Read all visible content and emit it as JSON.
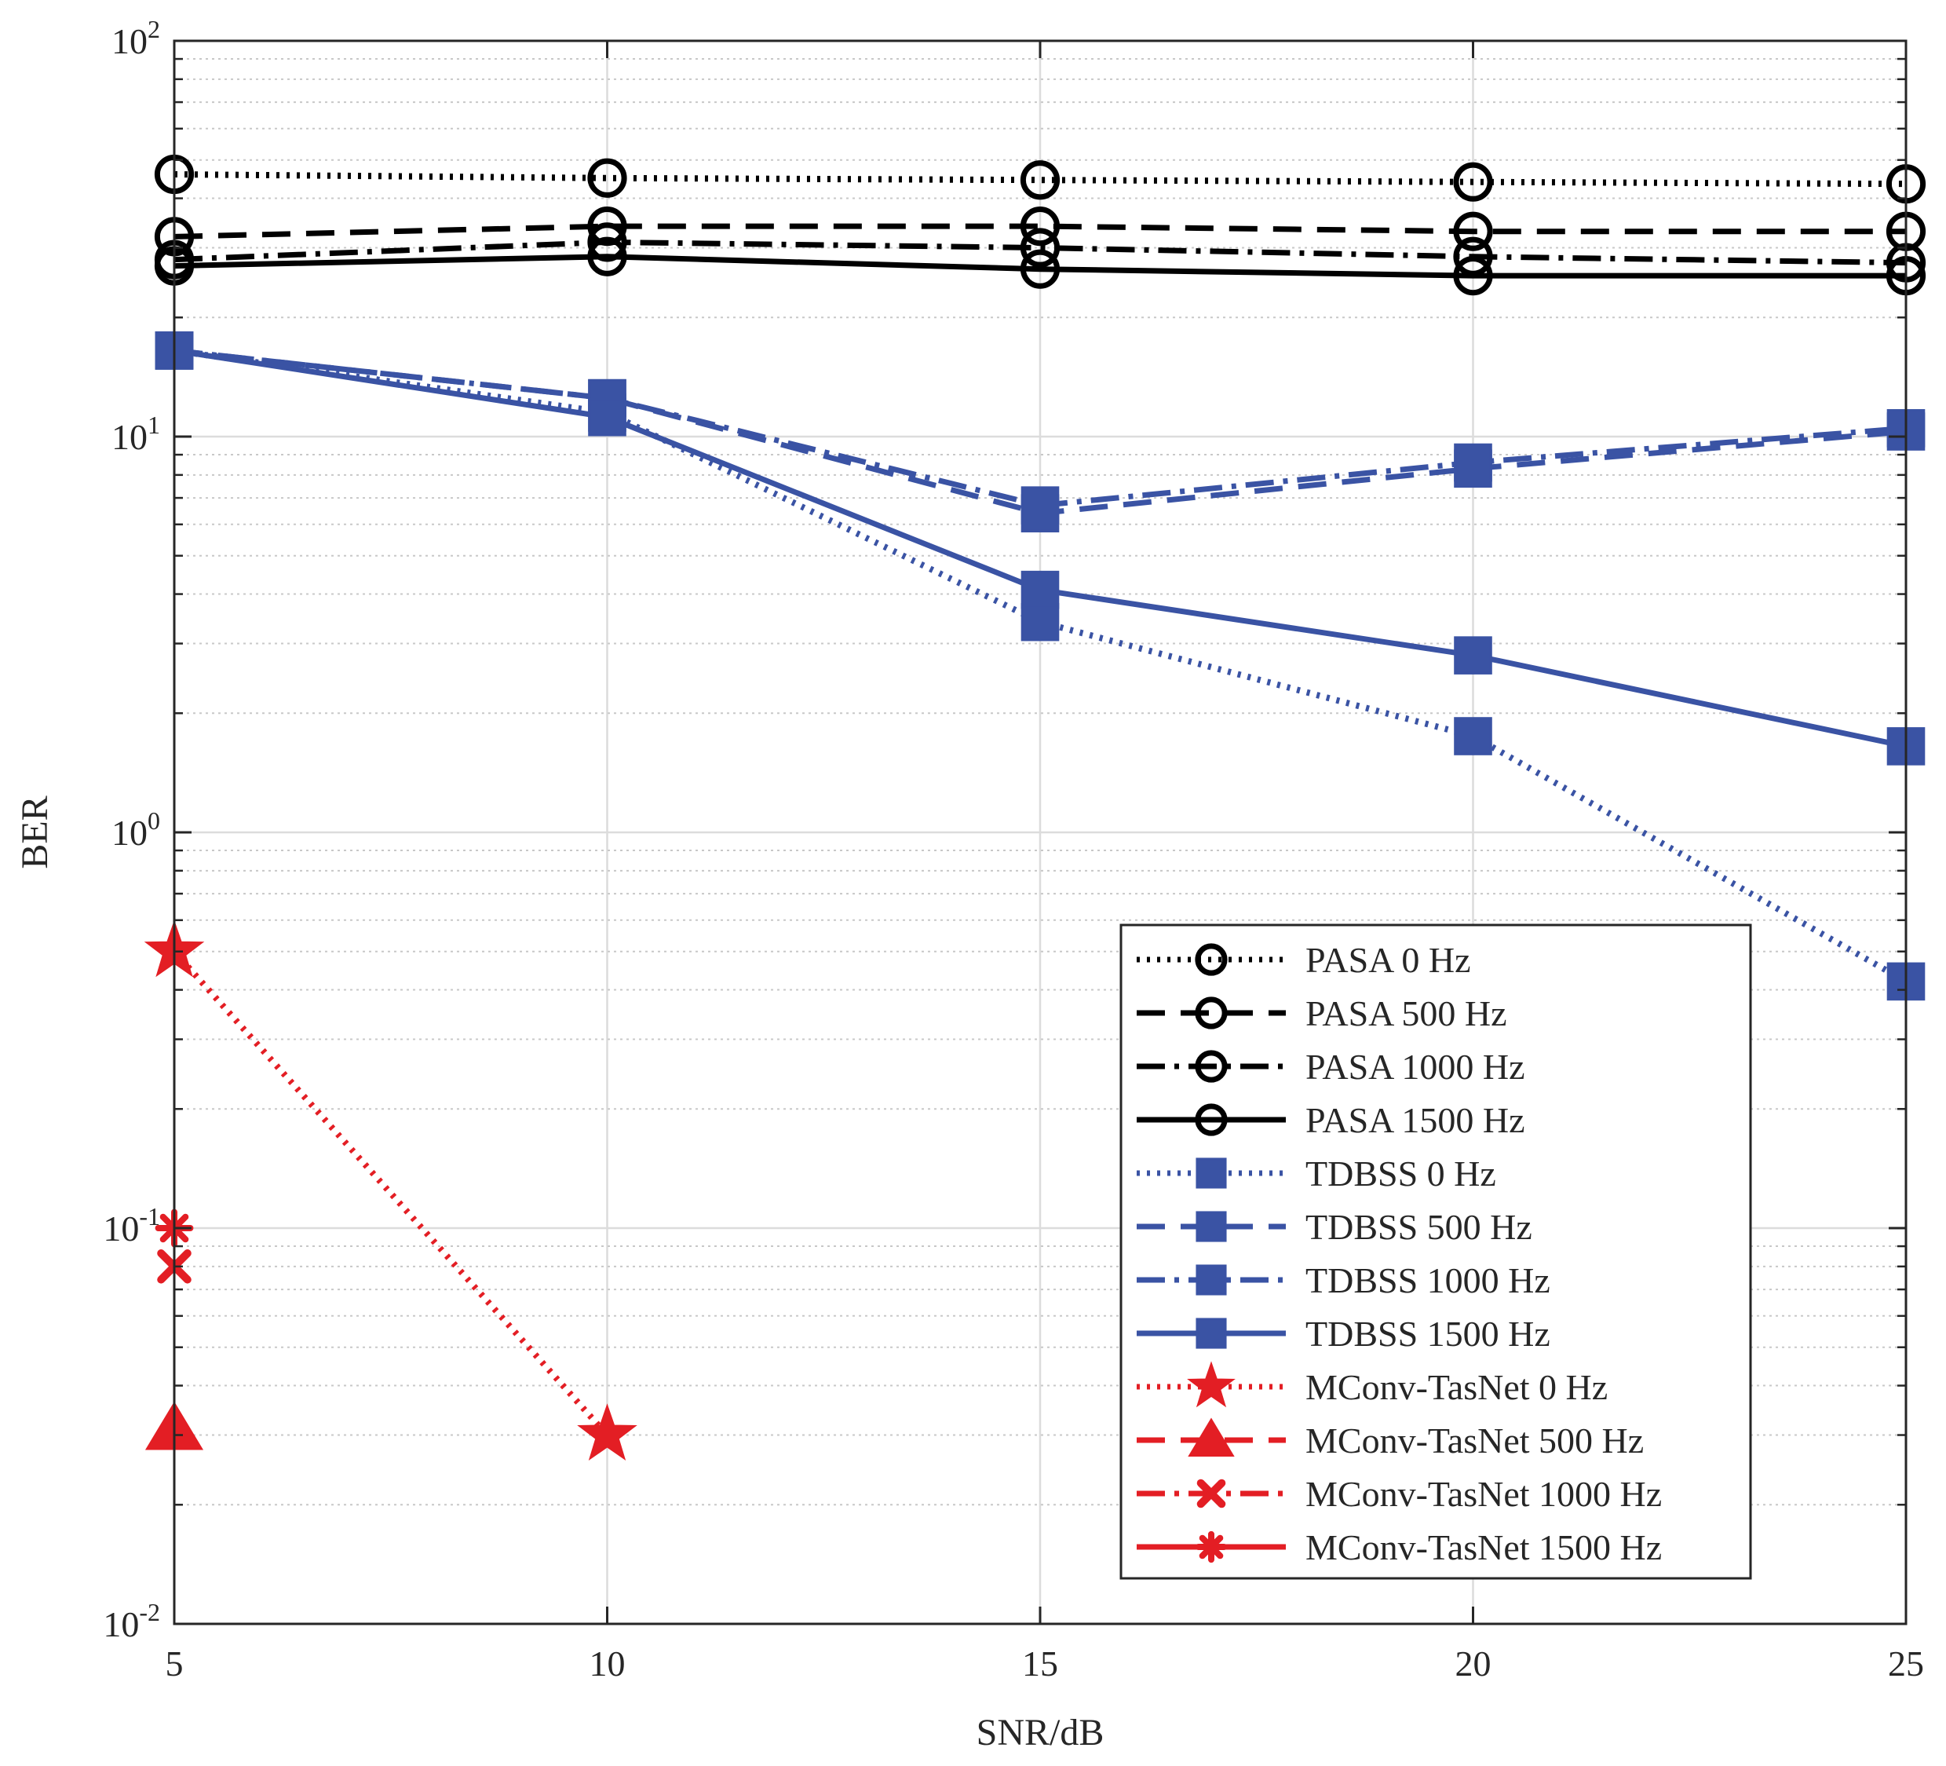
{
  "chart_data": {
    "type": "line",
    "xlabel": "SNR/dB",
    "ylabel": "BER",
    "yscale": "log",
    "xlim": [
      5,
      25
    ],
    "ylim": [
      0.01,
      100
    ],
    "grid": true,
    "legend_position": "bottom-right",
    "x": [
      5,
      10,
      15,
      20,
      25
    ],
    "x_tick_labels": [
      "5",
      "10",
      "15",
      "20",
      "25"
    ],
    "y_ticks": [
      {
        "value": 100,
        "base": "10",
        "exp": "2"
      },
      {
        "value": 10,
        "base": "10",
        "exp": "1"
      },
      {
        "value": 1,
        "base": "10",
        "exp": "0"
      },
      {
        "value": 0.1,
        "base": "10",
        "exp": "-1"
      },
      {
        "value": 0.01,
        "base": "10",
        "exp": "-2"
      }
    ],
    "series": [
      {
        "name": "PASA 0 Hz",
        "color": "#000000",
        "dash": "dotted",
        "marker": "circle",
        "x": [
          5,
          10,
          15,
          20,
          25
        ],
        "values": [
          46,
          45,
          44.5,
          44,
          43.5
        ]
      },
      {
        "name": "PASA 500 Hz",
        "color": "#000000",
        "dash": "dashed",
        "marker": "circle",
        "x": [
          5,
          10,
          15,
          20,
          25
        ],
        "values": [
          32,
          34,
          34,
          33,
          33
        ]
      },
      {
        "name": "PASA 1000 Hz",
        "color": "#000000",
        "dash": "dashdot",
        "marker": "circle",
        "x": [
          5,
          10,
          15,
          20,
          25
        ],
        "values": [
          28,
          31,
          30,
          28.5,
          27.5
        ]
      },
      {
        "name": "PASA 1500 Hz",
        "color": "#000000",
        "dash": "solid",
        "marker": "circle",
        "x": [
          5,
          10,
          15,
          20,
          25
        ],
        "values": [
          27,
          28.5,
          26.5,
          25.5,
          25.5
        ]
      },
      {
        "name": "TDBSS 0 Hz",
        "color": "#3A53A4",
        "dash": "dotted",
        "marker": "square",
        "x": [
          5,
          10,
          15,
          20,
          25
        ],
        "values": [
          16.5,
          11.5,
          3.4,
          1.75,
          0.42
        ]
      },
      {
        "name": "TDBSS 500 Hz",
        "color": "#3A53A4",
        "dash": "dashed",
        "marker": "square",
        "x": [
          5,
          10,
          15,
          20,
          25
        ],
        "values": [
          16.5,
          12.5,
          6.4,
          8.3,
          10.3
        ]
      },
      {
        "name": "TDBSS 1000 Hz",
        "color": "#3A53A4",
        "dash": "dashdot",
        "marker": "square",
        "x": [
          5,
          10,
          15,
          20,
          25
        ],
        "values": [
          16.5,
          12.5,
          6.7,
          8.6,
          10.5
        ]
      },
      {
        "name": "TDBSS 1500 Hz",
        "color": "#3A53A4",
        "dash": "solid",
        "marker": "square",
        "x": [
          5,
          10,
          15,
          20,
          25
        ],
        "values": [
          16.5,
          11.2,
          4.1,
          2.8,
          1.65
        ]
      },
      {
        "name": "MConv-TasNet 0 Hz",
        "color": "#E31E24",
        "dash": "dotted",
        "marker": "star",
        "x": [
          5,
          10
        ],
        "values": [
          0.5,
          0.03
        ]
      },
      {
        "name": "MConv-TasNet 500 Hz",
        "color": "#E31E24",
        "dash": "dashed",
        "marker": "triangle",
        "x": [
          5
        ],
        "values": [
          0.031
        ]
      },
      {
        "name": "MConv-TasNet 1000 Hz",
        "color": "#E31E24",
        "dash": "dashdot",
        "marker": "x",
        "x": [
          5
        ],
        "values": [
          0.08
        ]
      },
      {
        "name": "MConv-TasNet 1500 Hz",
        "color": "#E31E24",
        "dash": "solid",
        "marker": "asterisk",
        "x": [
          5
        ],
        "values": [
          0.1
        ]
      }
    ]
  }
}
